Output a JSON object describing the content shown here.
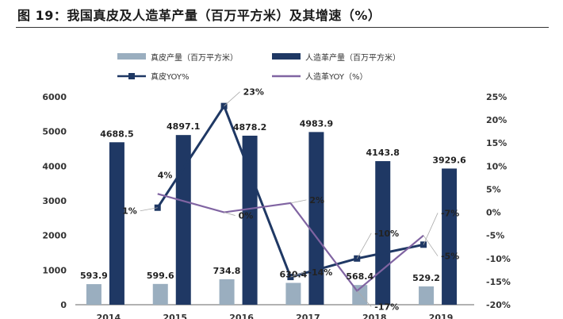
{
  "title": "图 19：我国真皮及人造革产量（百万平方米）及其增速（%）",
  "chart_data": {
    "type": "bar",
    "categories": [
      "2014",
      "2015",
      "2016",
      "2017",
      "2018",
      "2019"
    ],
    "series": [
      {
        "name": "真皮产量（百万平方米）",
        "kind": "bar",
        "axis": "left",
        "color": "#9aaebf",
        "values": [
          593.9,
          599.6,
          734.8,
          630.4,
          568.4,
          529.2
        ],
        "labels": [
          "593.9",
          "599.6",
          "734.8",
          "630.4",
          "568.4",
          "529.2"
        ]
      },
      {
        "name": "人造革产量（百万平方米）",
        "kind": "bar",
        "axis": "left",
        "color": "#1f3864",
        "values": [
          4688.5,
          4897.1,
          4878.2,
          4983.9,
          4143.8,
          3929.6
        ],
        "labels": [
          "4688.5",
          "4897.1",
          "4878.2",
          "4983.9",
          "4143.8",
          "3929.6"
        ]
      },
      {
        "name": "真皮YOY%",
        "kind": "line",
        "axis": "right",
        "color": "#1f3864",
        "marker": "square",
        "values": [
          null,
          1,
          23,
          -14,
          -10,
          -7
        ],
        "labels": [
          "",
          "1%",
          "23%",
          "-14%",
          "-10%",
          "-7%"
        ]
      },
      {
        "name": "人造革YOY（%）",
        "kind": "line",
        "axis": "right",
        "color": "#8064a2",
        "marker": "none",
        "values": [
          null,
          4,
          0,
          2,
          -17,
          -5
        ],
        "labels": [
          "",
          "4%",
          "0%",
          "2%",
          "-17%",
          "-5%"
        ]
      }
    ],
    "y_left": {
      "min": 0,
      "max": 6000,
      "ticks": [
        "0",
        "1000",
        "2000",
        "3000",
        "4000",
        "5000",
        "6000"
      ]
    },
    "y_right": {
      "min": -20,
      "max": 25,
      "ticks": [
        "-20%",
        "-15%",
        "-10%",
        "-5%",
        "0%",
        "5%",
        "10%",
        "15%",
        "20%",
        "25%"
      ]
    },
    "grid": false,
    "legend_position": "top"
  }
}
